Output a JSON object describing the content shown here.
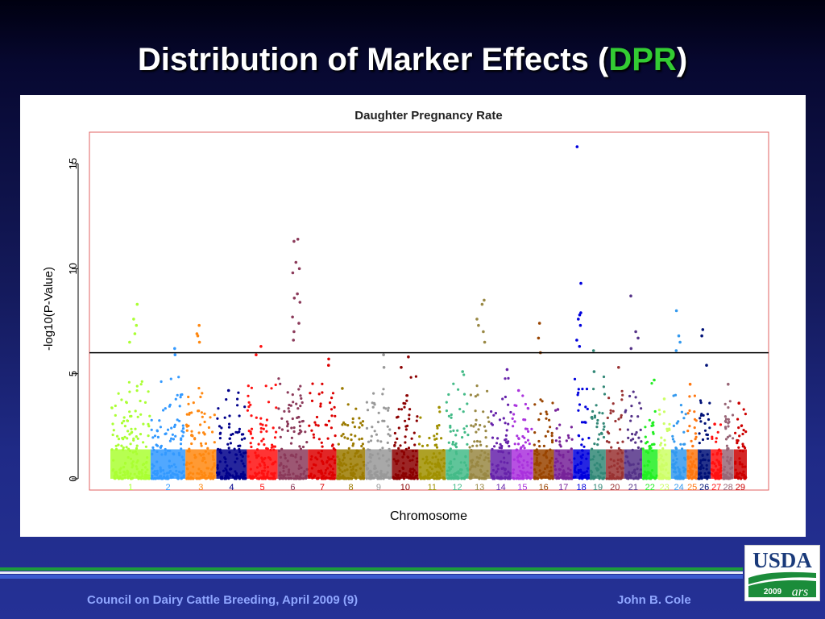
{
  "slide": {
    "title_before": "Distribution of Marker Effects (",
    "title_accent": "DPR",
    "title_after": ")",
    "footer_left": "Council on Dairy Cattle Breeding, April 2009 (9)",
    "footer_right": "John B. Cole",
    "logo_text": "USDA",
    "logo_year": "2009",
    "accent_color": "#33cc33"
  },
  "chart_data": {
    "type": "scatter",
    "title": "Daughter Pregnancy Rate",
    "xlabel": "Chromosome",
    "ylabel": "-log10(P-Value)",
    "ylim": [
      0,
      16.5
    ],
    "yticks": [
      0,
      5,
      10,
      15
    ],
    "threshold": 6,
    "grid": false,
    "categories": [
      "1",
      "2",
      "3",
      "4",
      "5",
      "6",
      "7",
      "8",
      "9",
      "10",
      "11",
      "12",
      "13",
      "14",
      "15",
      "16",
      "17",
      "18",
      "19",
      "20",
      "21",
      "22",
      "23",
      "24",
      "25",
      "26",
      "27",
      "28",
      "29"
    ],
    "series": [
      {
        "chromosome": "1",
        "color": "#aaff33",
        "peak": 8.3,
        "highlights": [
          8.3,
          7.6,
          7.3,
          6.9,
          6.5
        ]
      },
      {
        "chromosome": "2",
        "color": "#3399ff",
        "peak": 6.2,
        "highlights": [
          6.2,
          5.9
        ]
      },
      {
        "chromosome": "3",
        "color": "#ff8811",
        "peak": 7.3,
        "highlights": [
          7.3,
          6.9,
          6.8,
          6.5
        ]
      },
      {
        "chromosome": "4",
        "color": "#00008b",
        "peak": 4.2,
        "highlights": [
          4.2
        ]
      },
      {
        "chromosome": "5",
        "color": "#ff1111",
        "peak": 6.3,
        "highlights": [
          6.3,
          5.9
        ]
      },
      {
        "chromosome": "6",
        "color": "#8b3a5a",
        "peak": 11.4,
        "highlights": [
          11.4,
          11.3,
          10.3,
          10.0,
          9.8,
          8.8,
          8.6,
          8.4,
          7.7,
          7.4,
          7.0,
          6.6
        ]
      },
      {
        "chromosome": "7",
        "color": "#dd0000",
        "peak": 5.7,
        "highlights": [
          5.7,
          5.4
        ]
      },
      {
        "chromosome": "8",
        "color": "#9b7a00",
        "peak": 4.3,
        "highlights": [
          4.3
        ]
      },
      {
        "chromosome": "9",
        "color": "#999999",
        "peak": 5.9,
        "highlights": [
          5.9,
          5.3
        ]
      },
      {
        "chromosome": "10",
        "color": "#8b0000",
        "peak": 5.8,
        "highlights": [
          5.8,
          5.3
        ]
      },
      {
        "chromosome": "11",
        "color": "#a09000",
        "peak": 3.4,
        "highlights": [
          3.4
        ]
      },
      {
        "chromosome": "12",
        "color": "#44bb88",
        "peak": 5.1,
        "highlights": [
          5.1
        ]
      },
      {
        "chromosome": "13",
        "color": "#998844",
        "peak": 8.5,
        "highlights": [
          8.5,
          8.3,
          7.6,
          7.3,
          7.0,
          6.5
        ]
      },
      {
        "chromosome": "14",
        "color": "#6622aa",
        "peak": 5.2,
        "highlights": [
          5.2
        ]
      },
      {
        "chromosome": "15",
        "color": "#aa33dd",
        "peak": 4.2,
        "highlights": [
          4.2
        ]
      },
      {
        "chromosome": "16",
        "color": "#994400",
        "peak": 7.4,
        "highlights": [
          7.4,
          6.7,
          6.0
        ]
      },
      {
        "chromosome": "17",
        "color": "#772299",
        "peak": 3.3,
        "highlights": [
          3.3
        ]
      },
      {
        "chromosome": "18",
        "color": "#0000dd",
        "peak": 15.8,
        "highlights": [
          15.8,
          9.3,
          7.9,
          7.8,
          7.6,
          7.3,
          6.6,
          6.3
        ]
      },
      {
        "chromosome": "19",
        "color": "#338877",
        "peak": 6.1,
        "highlights": [
          6.1,
          5.1
        ]
      },
      {
        "chromosome": "20",
        "color": "#993333",
        "peak": 5.3,
        "highlights": [
          5.3
        ]
      },
      {
        "chromosome": "21",
        "color": "#553388",
        "peak": 8.7,
        "highlights": [
          8.7,
          7.0,
          6.7,
          6.2
        ]
      },
      {
        "chromosome": "22",
        "color": "#22ee22",
        "peak": 4.7,
        "highlights": [
          4.7
        ]
      },
      {
        "chromosome": "23",
        "color": "#ccff66",
        "peak": 3.8,
        "highlights": [
          3.8
        ]
      },
      {
        "chromosome": "24",
        "color": "#3399ee",
        "peak": 8.0,
        "highlights": [
          8.0,
          6.8,
          6.5,
          6.1
        ]
      },
      {
        "chromosome": "25",
        "color": "#ff7711",
        "peak": 4.5,
        "highlights": [
          4.5
        ]
      },
      {
        "chromosome": "26",
        "color": "#001177",
        "peak": 7.1,
        "highlights": [
          7.1,
          6.8,
          5.4
        ]
      },
      {
        "chromosome": "27",
        "color": "#ff1111",
        "peak": 2.6,
        "highlights": [
          2.6
        ]
      },
      {
        "chromosome": "28",
        "color": "#996677",
        "peak": 4.5,
        "highlights": [
          4.5
        ]
      },
      {
        "chromosome": "29",
        "color": "#cc0000",
        "peak": 3.6,
        "highlights": [
          3.6
        ]
      }
    ]
  }
}
